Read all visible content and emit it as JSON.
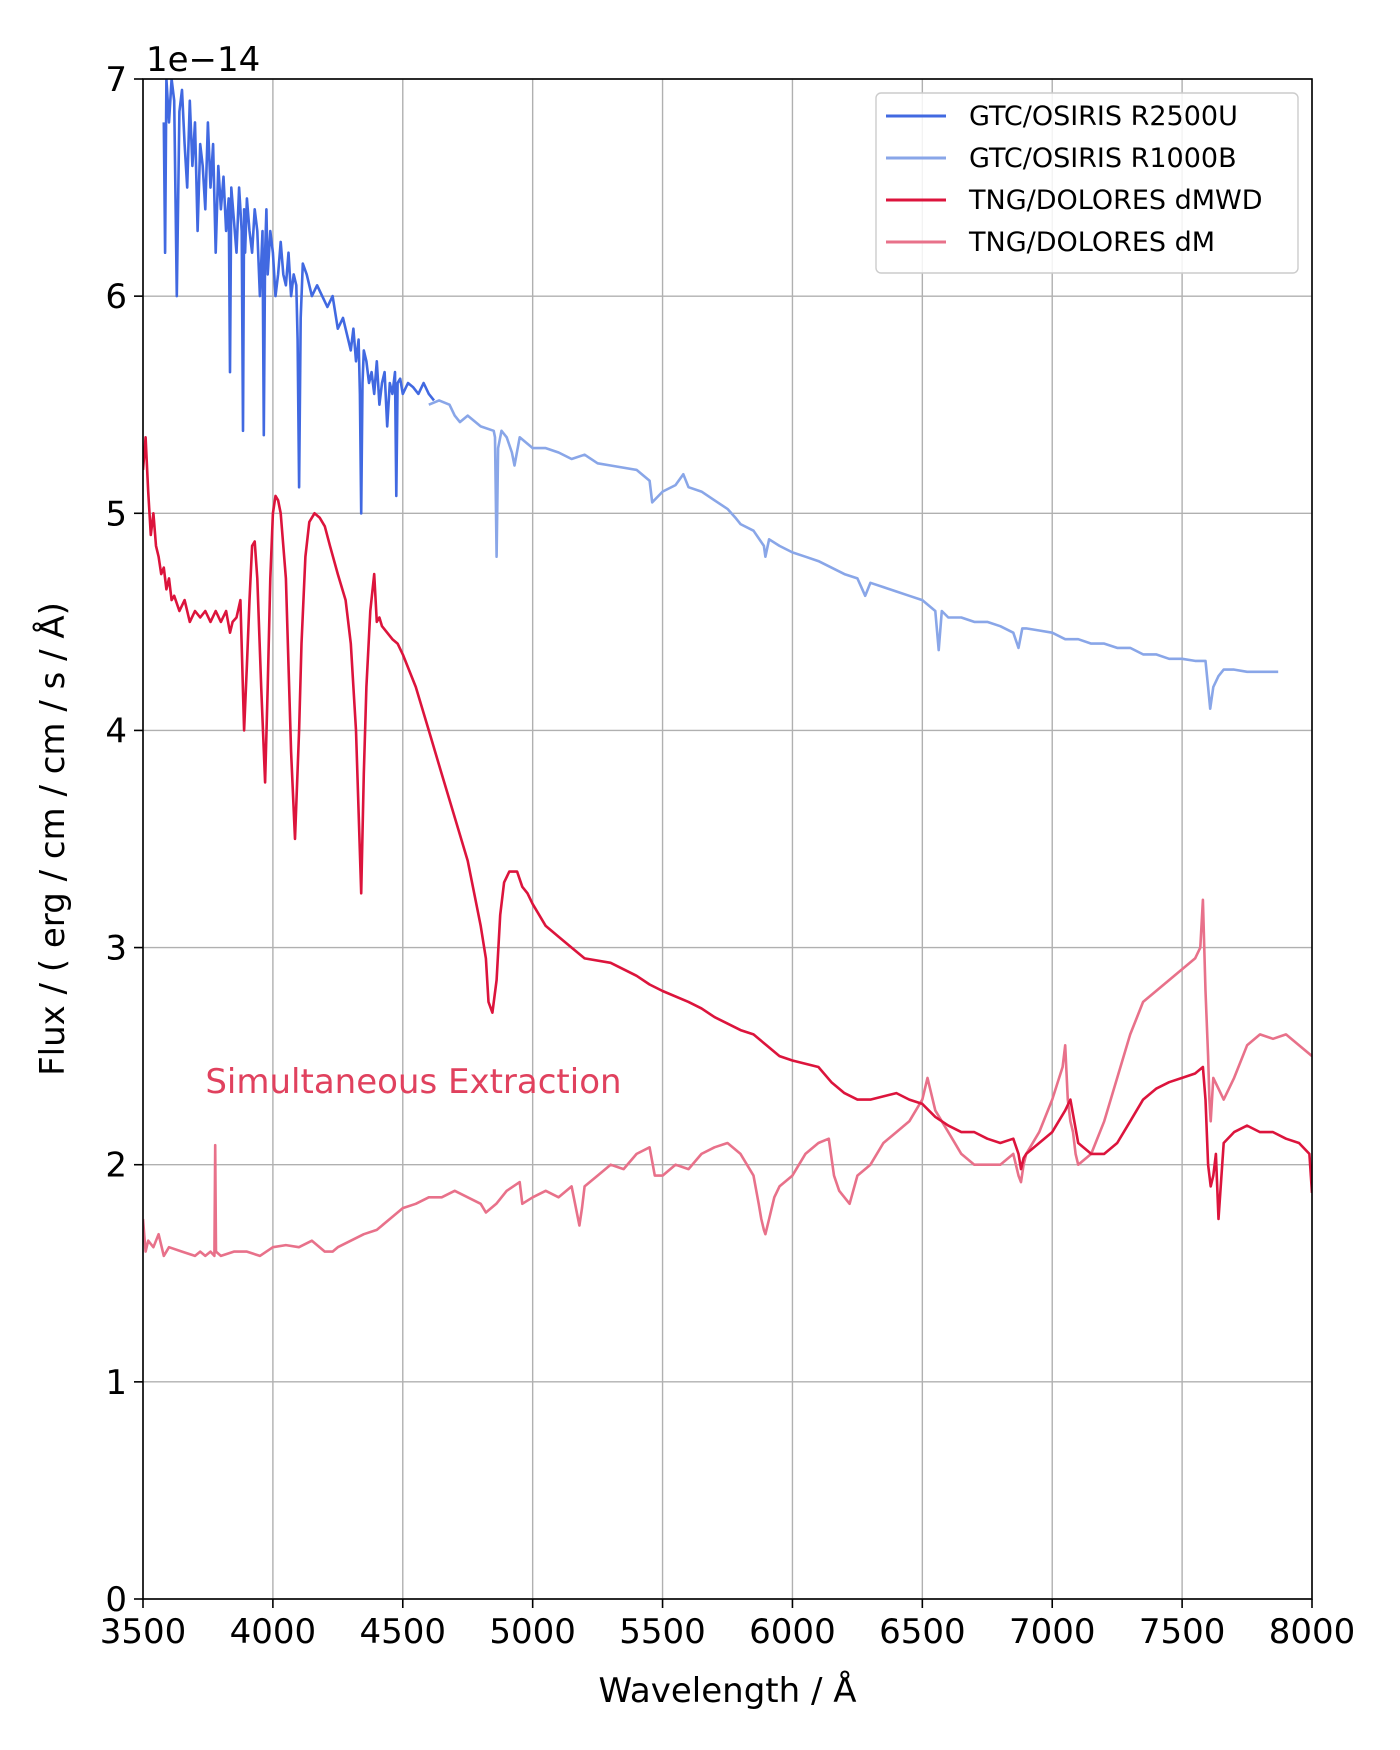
{
  "chart_data": {
    "type": "line",
    "title": "",
    "xlabel": "Wavelength / Å",
    "ylabel": "Flux / ( erg / cm / cm / s / Å)",
    "offset_label": "1e−14",
    "xlim": [
      3500,
      8000
    ],
    "ylim": [
      0,
      7
    ],
    "x_ticks": [
      "3500",
      "4000",
      "4500",
      "5000",
      "5500",
      "6000",
      "6500",
      "7000",
      "7500",
      "8000"
    ],
    "x_tick_values": [
      3500,
      4000,
      4500,
      5000,
      5500,
      6000,
      6500,
      7000,
      7500,
      8000
    ],
    "y_ticks": [
      "0",
      "1",
      "2",
      "3",
      "4",
      "5",
      "6",
      "7"
    ],
    "y_tick_values": [
      0,
      1,
      2,
      3,
      4,
      5,
      6,
      7
    ],
    "grid": true,
    "legend_position": "top-right",
    "annotation": {
      "text": "Simultaneous Extraction",
      "x": 3740,
      "y": 2.33,
      "color": "#e0415e"
    },
    "series": [
      {
        "name": "GTC/OSIRIS R2500U",
        "color": "#4169e1",
        "x": [
          3580,
          3585,
          3590,
          3595,
          3600,
          3610,
          3620,
          3630,
          3640,
          3650,
          3660,
          3670,
          3680,
          3690,
          3700,
          3710,
          3720,
          3730,
          3740,
          3750,
          3760,
          3770,
          3780,
          3790,
          3800,
          3810,
          3820,
          3830,
          3835,
          3840,
          3850,
          3860,
          3870,
          3880,
          3885,
          3889,
          3893,
          3900,
          3910,
          3920,
          3930,
          3940,
          3950,
          3960,
          3965,
          3970,
          3975,
          3980,
          3990,
          4000,
          4010,
          4020,
          4030,
          4040,
          4050,
          4060,
          4070,
          4080,
          4090,
          4095,
          4101,
          4107,
          4115,
          4130,
          4150,
          4170,
          4190,
          4210,
          4230,
          4250,
          4270,
          4290,
          4300,
          4310,
          4320,
          4330,
          4335,
          4340,
          4345,
          4350,
          4360,
          4370,
          4380,
          4390,
          4400,
          4410,
          4420,
          4430,
          4440,
          4450,
          4460,
          4470,
          4475,
          4480,
          4490,
          4500,
          4520,
          4540,
          4560,
          4580,
          4600,
          4620
        ],
        "values": [
          6.8,
          6.2,
          7.0,
          6.9,
          6.8,
          7.0,
          6.9,
          6.0,
          6.85,
          6.95,
          6.7,
          6.5,
          6.9,
          6.6,
          6.8,
          6.3,
          6.7,
          6.6,
          6.4,
          6.8,
          6.5,
          6.7,
          6.2,
          6.6,
          6.4,
          6.55,
          6.3,
          6.45,
          5.65,
          6.5,
          6.35,
          6.2,
          6.5,
          6.3,
          5.38,
          6.4,
          6.2,
          6.45,
          6.3,
          6.2,
          6.4,
          6.3,
          6.0,
          6.3,
          5.36,
          6.2,
          6.4,
          6.1,
          6.3,
          6.2,
          6.0,
          6.1,
          6.25,
          6.1,
          6.05,
          6.2,
          6.0,
          6.1,
          6.05,
          5.8,
          5.12,
          5.9,
          6.15,
          6.1,
          6.0,
          6.05,
          6.0,
          5.95,
          6.0,
          5.85,
          5.9,
          5.8,
          5.75,
          5.85,
          5.7,
          5.8,
          5.55,
          5.0,
          5.6,
          5.75,
          5.7,
          5.6,
          5.65,
          5.55,
          5.7,
          5.5,
          5.6,
          5.65,
          5.4,
          5.6,
          5.55,
          5.65,
          5.08,
          5.6,
          5.62,
          5.55,
          5.6,
          5.58,
          5.55,
          5.6,
          5.55,
          5.52
        ]
      },
      {
        "name": "GTC/OSIRIS R1000B",
        "color": "#89a6e8",
        "x": [
          4600,
          4640,
          4680,
          4700,
          4720,
          4750,
          4800,
          4850,
          4855,
          4861,
          4867,
          4880,
          4900,
          4920,
          4930,
          4950,
          5000,
          5050,
          5100,
          5150,
          5200,
          5250,
          5300,
          5400,
          5450,
          5460,
          5500,
          5550,
          5580,
          5600,
          5650,
          5700,
          5750,
          5780,
          5800,
          5850,
          5890,
          5896,
          5910,
          5950,
          6000,
          6050,
          6100,
          6150,
          6200,
          6250,
          6280,
          6300,
          6350,
          6400,
          6450,
          6500,
          6550,
          6563,
          6575,
          6600,
          6650,
          6700,
          6750,
          6800,
          6850,
          6870,
          6885,
          6900,
          6950,
          7000,
          7050,
          7100,
          7150,
          7200,
          7250,
          7300,
          7350,
          7400,
          7450,
          7500,
          7550,
          7590,
          7600,
          7608,
          7620,
          7640,
          7660,
          7700,
          7750,
          7800,
          7870
        ],
        "values": [
          5.5,
          5.52,
          5.5,
          5.45,
          5.42,
          5.45,
          5.4,
          5.38,
          5.35,
          4.8,
          5.3,
          5.38,
          5.35,
          5.28,
          5.22,
          5.35,
          5.3,
          5.3,
          5.28,
          5.25,
          5.27,
          5.23,
          5.22,
          5.2,
          5.15,
          5.05,
          5.1,
          5.13,
          5.18,
          5.12,
          5.1,
          5.06,
          5.02,
          4.98,
          4.95,
          4.92,
          4.85,
          4.8,
          4.88,
          4.85,
          4.82,
          4.8,
          4.78,
          4.75,
          4.72,
          4.7,
          4.62,
          4.68,
          4.66,
          4.64,
          4.62,
          4.6,
          4.55,
          4.37,
          4.55,
          4.52,
          4.52,
          4.5,
          4.5,
          4.48,
          4.45,
          4.38,
          4.47,
          4.47,
          4.46,
          4.45,
          4.42,
          4.42,
          4.4,
          4.4,
          4.38,
          4.38,
          4.35,
          4.35,
          4.33,
          4.33,
          4.32,
          4.32,
          4.2,
          4.1,
          4.2,
          4.25,
          4.28,
          4.28,
          4.27,
          4.27,
          4.27
        ]
      },
      {
        "name": "TNG/DOLORES dMWD",
        "color": "#dc143c",
        "x": [
          3500,
          3510,
          3520,
          3530,
          3540,
          3550,
          3560,
          3570,
          3580,
          3590,
          3600,
          3610,
          3620,
          3640,
          3660,
          3680,
          3700,
          3720,
          3740,
          3760,
          3780,
          3800,
          3820,
          3835,
          3845,
          3860,
          3875,
          3889,
          3900,
          3910,
          3920,
          3930,
          3940,
          3955,
          3970,
          3980,
          3990,
          4000,
          4010,
          4020,
          4030,
          4050,
          4060,
          4070,
          4085,
          4101,
          4110,
          4125,
          4140,
          4160,
          4180,
          4200,
          4220,
          4250,
          4280,
          4300,
          4320,
          4340,
          4350,
          4360,
          4375,
          4390,
          4400,
          4410,
          4420,
          4440,
          4460,
          4480,
          4500,
          4550,
          4600,
          4650,
          4700,
          4750,
          4800,
          4820,
          4830,
          4845,
          4861,
          4875,
          4890,
          4910,
          4940,
          4960,
          4980,
          5000,
          5050,
          5100,
          5150,
          5200,
          5300,
          5400,
          5450,
          5500,
          5600,
          5650,
          5700,
          5750,
          5800,
          5850,
          5900,
          5950,
          6000,
          6100,
          6150,
          6200,
          6250,
          6300,
          6400,
          6450,
          6500,
          6550,
          6600,
          6650,
          6700,
          6750,
          6800,
          6850,
          6870,
          6880,
          6890,
          6900,
          6950,
          7000,
          7050,
          7070,
          7100,
          7150,
          7200,
          7250,
          7300,
          7350,
          7400,
          7450,
          7500,
          7550,
          7580,
          7590,
          7600,
          7610,
          7620,
          7630,
          7640,
          7660,
          7700,
          7750,
          7800,
          7850,
          7900,
          7950,
          7990,
          8000
        ],
        "values": [
          5.2,
          5.35,
          5.1,
          4.9,
          5.0,
          4.85,
          4.8,
          4.72,
          4.75,
          4.65,
          4.7,
          4.6,
          4.62,
          4.55,
          4.6,
          4.5,
          4.55,
          4.52,
          4.55,
          4.5,
          4.55,
          4.5,
          4.55,
          4.45,
          4.5,
          4.52,
          4.6,
          4.0,
          4.3,
          4.6,
          4.85,
          4.87,
          4.7,
          4.2,
          3.76,
          4.2,
          4.7,
          5.0,
          5.08,
          5.06,
          5.0,
          4.7,
          4.3,
          3.9,
          3.5,
          4.0,
          4.4,
          4.8,
          4.96,
          5.0,
          4.98,
          4.94,
          4.85,
          4.72,
          4.6,
          4.4,
          4.0,
          3.25,
          3.8,
          4.2,
          4.55,
          4.72,
          4.5,
          4.52,
          4.48,
          4.45,
          4.42,
          4.4,
          4.35,
          4.2,
          4.0,
          3.8,
          3.6,
          3.4,
          3.1,
          2.95,
          2.75,
          2.7,
          2.85,
          3.15,
          3.3,
          3.35,
          3.35,
          3.28,
          3.25,
          3.2,
          3.1,
          3.05,
          3.0,
          2.95,
          2.93,
          2.87,
          2.83,
          2.8,
          2.75,
          2.72,
          2.68,
          2.65,
          2.62,
          2.6,
          2.55,
          2.5,
          2.48,
          2.45,
          2.38,
          2.33,
          2.3,
          2.3,
          2.33,
          2.3,
          2.28,
          2.22,
          2.18,
          2.15,
          2.15,
          2.12,
          2.1,
          2.12,
          2.05,
          1.98,
          2.03,
          2.05,
          2.1,
          2.15,
          2.25,
          2.3,
          2.1,
          2.05,
          2.05,
          2.1,
          2.2,
          2.3,
          2.35,
          2.38,
          2.4,
          2.42,
          2.45,
          2.3,
          2.0,
          1.9,
          1.95,
          2.05,
          1.75,
          2.1,
          2.15,
          2.18,
          2.15,
          2.15,
          2.12,
          2.1,
          2.05,
          1.87
        ]
      },
      {
        "name": "TNG/DOLORES dM",
        "color": "#e8718a",
        "x": [
          3500,
          3510,
          3520,
          3540,
          3560,
          3580,
          3600,
          3650,
          3700,
          3720,
          3740,
          3760,
          3775,
          3778,
          3781,
          3800,
          3850,
          3900,
          3950,
          4000,
          4050,
          4100,
          4150,
          4200,
          4230,
          4250,
          4300,
          4350,
          4400,
          4450,
          4500,
          4550,
          4600,
          4650,
          4700,
          4750,
          4800,
          4820,
          4840,
          4860,
          4880,
          4900,
          4950,
          4960,
          5000,
          5050,
          5100,
          5150,
          5180,
          5190,
          5200,
          5250,
          5300,
          5350,
          5400,
          5450,
          5470,
          5500,
          5550,
          5600,
          5650,
          5700,
          5750,
          5800,
          5850,
          5870,
          5880,
          5890,
          5896,
          5910,
          5930,
          5950,
          6000,
          6050,
          6100,
          6140,
          6160,
          6180,
          6200,
          6220,
          6250,
          6300,
          6350,
          6400,
          6450,
          6500,
          6520,
          6550,
          6600,
          6650,
          6700,
          6750,
          6800,
          6850,
          6870,
          6880,
          6890,
          6900,
          6950,
          7000,
          7040,
          7050,
          7060,
          7070,
          7080,
          7090,
          7100,
          7150,
          7200,
          7250,
          7300,
          7350,
          7400,
          7450,
          7500,
          7550,
          7570,
          7580,
          7590,
          7600,
          7605,
          7610,
          7620,
          7640,
          7660,
          7700,
          7750,
          7800,
          7850,
          7900,
          7950,
          8000
        ],
        "values": [
          1.75,
          1.6,
          1.65,
          1.62,
          1.68,
          1.58,
          1.62,
          1.6,
          1.58,
          1.6,
          1.58,
          1.6,
          1.58,
          2.09,
          1.6,
          1.58,
          1.6,
          1.6,
          1.58,
          1.62,
          1.63,
          1.62,
          1.65,
          1.6,
          1.6,
          1.62,
          1.65,
          1.68,
          1.7,
          1.75,
          1.8,
          1.82,
          1.85,
          1.85,
          1.88,
          1.85,
          1.82,
          1.78,
          1.8,
          1.82,
          1.85,
          1.88,
          1.92,
          1.82,
          1.85,
          1.88,
          1.85,
          1.9,
          1.72,
          1.8,
          1.9,
          1.95,
          2.0,
          1.98,
          2.05,
          2.08,
          1.95,
          1.95,
          2.0,
          1.98,
          2.05,
          2.08,
          2.1,
          2.05,
          1.95,
          1.82,
          1.75,
          1.7,
          1.68,
          1.75,
          1.85,
          1.9,
          1.95,
          2.05,
          2.1,
          2.12,
          1.95,
          1.88,
          1.85,
          1.82,
          1.95,
          2.0,
          2.1,
          2.15,
          2.2,
          2.3,
          2.4,
          2.25,
          2.15,
          2.05,
          2.0,
          2.0,
          2.0,
          2.05,
          1.95,
          1.92,
          2.0,
          2.05,
          2.15,
          2.3,
          2.45,
          2.55,
          2.3,
          2.2,
          2.15,
          2.05,
          2.0,
          2.05,
          2.2,
          2.4,
          2.6,
          2.75,
          2.8,
          2.85,
          2.9,
          2.95,
          3.0,
          3.22,
          2.8,
          2.5,
          2.3,
          2.2,
          2.4,
          2.35,
          2.3,
          2.4,
          2.55,
          2.6,
          2.58,
          2.6,
          2.55,
          2.5
        ]
      }
    ]
  }
}
